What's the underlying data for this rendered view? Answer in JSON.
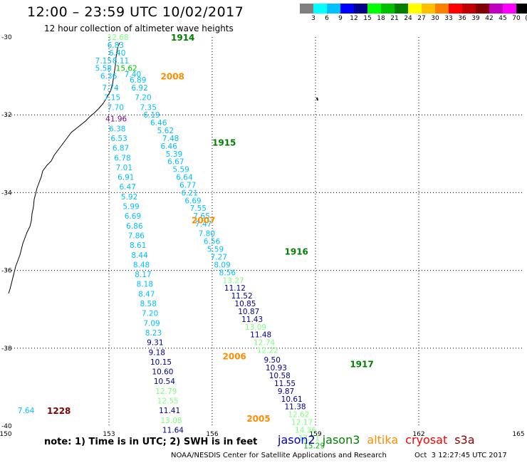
{
  "title": "12:00 – 23:59 UTC 10/02/2017",
  "subtitle": "12 hour collection of altimeter wave heights",
  "legend": {
    "colors": [
      "#808080",
      "#00ffff",
      "#00c0ff",
      "#0000ff",
      "#00008b",
      "#00ff00",
      "#00c000",
      "#008000",
      "#ffff00",
      "#ffc000",
      "#ff8000",
      "#ff0000",
      "#c00000",
      "#800000",
      "#c000c0",
      "#ff00ff",
      "#000000"
    ],
    "labels": [
      "3",
      "6",
      "9",
      "12",
      "15",
      "18",
      "21",
      "24",
      "27",
      "30",
      "33",
      "36",
      "39",
      "42",
      "45",
      "70",
      "(ft)"
    ]
  },
  "axes": {
    "lon_labels": [
      "150",
      "153",
      "156",
      "159",
      "162",
      "165"
    ],
    "lat_labels": [
      "-30",
      "-32",
      "-34",
      "-36",
      "-38",
      "-40"
    ]
  },
  "passes": [
    {
      "label": "1914",
      "color": "#008000",
      "lon": 154.8,
      "lat": -30.0
    },
    {
      "label": "2008",
      "color": "#ff8c00",
      "lon": 154.5,
      "lat": -31.0
    },
    {
      "label": "1915",
      "color": "#008000",
      "lon": 156.0,
      "lat": -32.7
    },
    {
      "label": "2007",
      "color": "#ff8c00",
      "lon": 155.4,
      "lat": -34.7
    },
    {
      "label": "1916",
      "color": "#008000",
      "lon": 158.1,
      "lat": -35.5
    },
    {
      "label": "2006",
      "color": "#ff8c00",
      "lon": 156.3,
      "lat": -38.2
    },
    {
      "label": "1917",
      "color": "#008000",
      "lon": 160.0,
      "lat": -38.4
    },
    {
      "label": "2005",
      "color": "#ff8c00",
      "lon": 157.0,
      "lat": -39.8
    },
    {
      "label": "1228",
      "color": "#800000",
      "lon": 151.2,
      "lat": -39.6
    }
  ],
  "observations": [
    {
      "v": "12.68",
      "c": "#7fff7f",
      "lon": 152.95,
      "lat": -30.0
    },
    {
      "v": "6.83",
      "c": "#00c0ff",
      "lon": 152.95,
      "lat": -30.2
    },
    {
      "v": "6.40",
      "c": "#00c0ff",
      "lon": 153.0,
      "lat": -30.4
    },
    {
      "v": "7.15",
      "c": "#00c0ff",
      "lon": 152.6,
      "lat": -30.6
    },
    {
      "v": "8.11",
      "c": "#00c0ff",
      "lon": 153.1,
      "lat": -30.6
    },
    {
      "v": "5.58",
      "c": "#00c0ff",
      "lon": 152.6,
      "lat": -30.8
    },
    {
      "v": "15.62",
      "c": "#00c000",
      "lon": 153.2,
      "lat": -30.8
    },
    {
      "v": "7.40",
      "c": "#00c0ff",
      "lon": 153.45,
      "lat": -30.95
    },
    {
      "v": "6.36",
      "c": "#00c0ff",
      "lon": 152.75,
      "lat": -31.0
    },
    {
      "v": "6.89",
      "c": "#00c0ff",
      "lon": 153.6,
      "lat": -31.1
    },
    {
      "v": "7.74",
      "c": "#00c0ff",
      "lon": 152.8,
      "lat": -31.3
    },
    {
      "v": "6.92",
      "c": "#00c0ff",
      "lon": 153.65,
      "lat": -31.3
    },
    {
      "v": "7.15",
      "c": "#00c0ff",
      "lon": 152.85,
      "lat": -31.55
    },
    {
      "v": "7.20",
      "c": "#00c0ff",
      "lon": 153.75,
      "lat": -31.55
    },
    {
      "v": "7.70",
      "c": "#00c0ff",
      "lon": 152.95,
      "lat": -31.8
    },
    {
      "v": "7.35",
      "c": "#00c0ff",
      "lon": 153.9,
      "lat": -31.8
    },
    {
      "v": "41.96",
      "c": "#800080",
      "lon": 152.9,
      "lat": -32.1
    },
    {
      "v": "6.19",
      "c": "#00c0ff",
      "lon": 154.0,
      "lat": -32.0
    },
    {
      "v": "6.46",
      "c": "#00c0ff",
      "lon": 154.2,
      "lat": -32.2
    },
    {
      "v": "6.38",
      "c": "#00c0ff",
      "lon": 153.0,
      "lat": -32.35
    },
    {
      "v": "5.62",
      "c": "#00c0ff",
      "lon": 154.4,
      "lat": -32.4
    },
    {
      "v": "6.53",
      "c": "#00c0ff",
      "lon": 153.05,
      "lat": -32.6
    },
    {
      "v": "7.48",
      "c": "#00c0ff",
      "lon": 154.55,
      "lat": -32.6
    },
    {
      "v": "6.46",
      "c": "#00c0ff",
      "lon": 154.5,
      "lat": -32.8
    },
    {
      "v": "6.87",
      "c": "#00c0ff",
      "lon": 153.1,
      "lat": -32.85
    },
    {
      "v": "5.39",
      "c": "#00c0ff",
      "lon": 154.65,
      "lat": -33.0
    },
    {
      "v": "6.78",
      "c": "#00c0ff",
      "lon": 153.15,
      "lat": -33.1
    },
    {
      "v": "6.67",
      "c": "#00c0ff",
      "lon": 154.7,
      "lat": -33.2
    },
    {
      "v": "7.01",
      "c": "#00c0ff",
      "lon": 153.2,
      "lat": -33.35
    },
    {
      "v": "5.59",
      "c": "#00c0ff",
      "lon": 154.85,
      "lat": -33.4
    },
    {
      "v": "6.91",
      "c": "#00c0ff",
      "lon": 153.25,
      "lat": -33.6
    },
    {
      "v": "6.64",
      "c": "#00c0ff",
      "lon": 154.95,
      "lat": -33.6
    },
    {
      "v": "6.77",
      "c": "#00c0ff",
      "lon": 155.05,
      "lat": -33.8
    },
    {
      "v": "6.47",
      "c": "#00c0ff",
      "lon": 153.3,
      "lat": -33.85
    },
    {
      "v": "6.21",
      "c": "#00c0ff",
      "lon": 155.1,
      "lat": -34.0
    },
    {
      "v": "5.92",
      "c": "#00c0ff",
      "lon": 153.35,
      "lat": -34.1
    },
    {
      "v": "6.69",
      "c": "#00c0ff",
      "lon": 155.2,
      "lat": -34.2
    },
    {
      "v": "5.99",
      "c": "#00c0ff",
      "lon": 153.4,
      "lat": -34.35
    },
    {
      "v": "7.55",
      "c": "#00c0ff",
      "lon": 155.35,
      "lat": -34.4
    },
    {
      "v": "7.65",
      "c": "#00c0ff",
      "lon": 155.45,
      "lat": -34.6
    },
    {
      "v": "6.69",
      "c": "#00c0ff",
      "lon": 153.45,
      "lat": -34.6
    },
    {
      "v": "7.47",
      "c": "#00c0ff",
      "lon": 155.5,
      "lat": -34.8
    },
    {
      "v": "6.86",
      "c": "#00c0ff",
      "lon": 153.5,
      "lat": -34.85
    },
    {
      "v": "7.80",
      "c": "#00c0ff",
      "lon": 155.6,
      "lat": -35.05
    },
    {
      "v": "7.86",
      "c": "#00c0ff",
      "lon": 153.55,
      "lat": -35.1
    },
    {
      "v": "6.56",
      "c": "#00c0ff",
      "lon": 155.75,
      "lat": -35.25
    },
    {
      "v": "8.61",
      "c": "#00c0ff",
      "lon": 153.6,
      "lat": -35.35
    },
    {
      "v": "5.59",
      "c": "#00c0ff",
      "lon": 155.85,
      "lat": -35.45
    },
    {
      "v": "7.27",
      "c": "#00c0ff",
      "lon": 155.95,
      "lat": -35.65
    },
    {
      "v": "8.44",
      "c": "#00c0ff",
      "lon": 153.65,
      "lat": -35.6
    },
    {
      "v": "8.09",
      "c": "#00c0ff",
      "lon": 156.05,
      "lat": -35.85
    },
    {
      "v": "8.48",
      "c": "#00c0ff",
      "lon": 153.7,
      "lat": -35.85
    },
    {
      "v": "8.56",
      "c": "#00c0ff",
      "lon": 156.2,
      "lat": -36.05
    },
    {
      "v": "13.27",
      "c": "#7fff7f",
      "lon": 156.3,
      "lat": -36.25
    },
    {
      "v": "8.17",
      "c": "#00c0ff",
      "lon": 153.75,
      "lat": -36.1
    },
    {
      "v": "11.12",
      "c": "#00008b",
      "lon": 156.35,
      "lat": -36.45
    },
    {
      "v": "8.18",
      "c": "#00c0ff",
      "lon": 153.8,
      "lat": -36.35
    },
    {
      "v": "11.52",
      "c": "#00008b",
      "lon": 156.55,
      "lat": -36.65
    },
    {
      "v": "8.47",
      "c": "#00c0ff",
      "lon": 153.85,
      "lat": -36.6
    },
    {
      "v": "10.85",
      "c": "#00008b",
      "lon": 156.65,
      "lat": -36.85
    },
    {
      "v": "8.58",
      "c": "#00c0ff",
      "lon": 153.9,
      "lat": -36.85
    },
    {
      "v": "10.87",
      "c": "#00008b",
      "lon": 156.75,
      "lat": -37.05
    },
    {
      "v": "7.20",
      "c": "#00c0ff",
      "lon": 153.95,
      "lat": -37.1
    },
    {
      "v": "11.43",
      "c": "#00008b",
      "lon": 156.85,
      "lat": -37.25
    },
    {
      "v": "7.09",
      "c": "#00c0ff",
      "lon": 154.0,
      "lat": -37.35
    },
    {
      "v": "13.09",
      "c": "#7fff7f",
      "lon": 156.95,
      "lat": -37.45
    },
    {
      "v": "11.48",
      "c": "#00008b",
      "lon": 157.1,
      "lat": -37.65
    },
    {
      "v": "8.23",
      "c": "#00c0ff",
      "lon": 154.05,
      "lat": -37.6
    },
    {
      "v": "12.74",
      "c": "#7fff7f",
      "lon": 157.2,
      "lat": -37.85
    },
    {
      "v": "9.31",
      "c": "#00008b",
      "lon": 154.1,
      "lat": -37.85
    },
    {
      "v": "12.22",
      "c": "#7fff7f",
      "lon": 157.3,
      "lat": -38.05
    },
    {
      "v": "9.18",
      "c": "#00008b",
      "lon": 154.15,
      "lat": -38.1
    },
    {
      "v": "9.50",
      "c": "#00008b",
      "lon": 157.5,
      "lat": -38.3
    },
    {
      "v": "10.93",
      "c": "#00008b",
      "lon": 157.55,
      "lat": -38.5
    },
    {
      "v": "10.15",
      "c": "#00008b",
      "lon": 154.2,
      "lat": -38.35
    },
    {
      "v": "10.58",
      "c": "#00008b",
      "lon": 157.65,
      "lat": -38.7
    },
    {
      "v": "10.60",
      "c": "#00008b",
      "lon": 154.25,
      "lat": -38.6
    },
    {
      "v": "11.55",
      "c": "#00008b",
      "lon": 157.8,
      "lat": -38.9
    },
    {
      "v": "9.87",
      "c": "#00008b",
      "lon": 157.9,
      "lat": -39.1
    },
    {
      "v": "10.54",
      "c": "#00008b",
      "lon": 154.3,
      "lat": -38.85
    },
    {
      "v": "10.61",
      "c": "#00008b",
      "lon": 158.0,
      "lat": -39.3
    },
    {
      "v": "12.79",
      "c": "#7fff7f",
      "lon": 154.35,
      "lat": -39.1
    },
    {
      "v": "11.38",
      "c": "#00008b",
      "lon": 158.1,
      "lat": -39.5
    },
    {
      "v": "12.55",
      "c": "#7fff7f",
      "lon": 154.4,
      "lat": -39.35
    },
    {
      "v": "12.62",
      "c": "#7fff7f",
      "lon": 158.2,
      "lat": -39.7
    },
    {
      "v": "12.17",
      "c": "#7fff7f",
      "lon": 158.3,
      "lat": -39.9
    },
    {
      "v": "11.41",
      "c": "#00008b",
      "lon": 154.45,
      "lat": -39.6
    },
    {
      "v": "14.26",
      "c": "#7fff7f",
      "lon": 158.4,
      "lat": -40.1
    },
    {
      "v": "13.08",
      "c": "#7fff7f",
      "lon": 154.5,
      "lat": -39.85
    },
    {
      "v": "12.71",
      "c": "#7fff7f",
      "lon": 158.5,
      "lat": -40.3
    },
    {
      "v": "11.64",
      "c": "#00008b",
      "lon": 154.55,
      "lat": -40.1
    },
    {
      "v": "15.29",
      "c": "#00c000",
      "lon": 158.65,
      "lat": -40.5
    },
    {
      "v": "7.64",
      "c": "#00c0ff",
      "lon": 150.35,
      "lat": -39.6
    }
  ],
  "note": "note: 1) Time is in UTC; 2) SWH is in feet",
  "satellites": [
    {
      "name": "jason2",
      "color": "#0000cd"
    },
    {
      "name": "jason3",
      "color": "#008000"
    },
    {
      "name": "altika",
      "color": "#ff8c00"
    },
    {
      "name": "cryosat",
      "color": "#ff0000"
    },
    {
      "name": "s3a",
      "color": "#8b0000"
    }
  ],
  "footer": "NOAA/NESDIS Center for Satellite Applications and Research",
  "footer_time": "Oct  3 12:27:45 UTC 2017"
}
